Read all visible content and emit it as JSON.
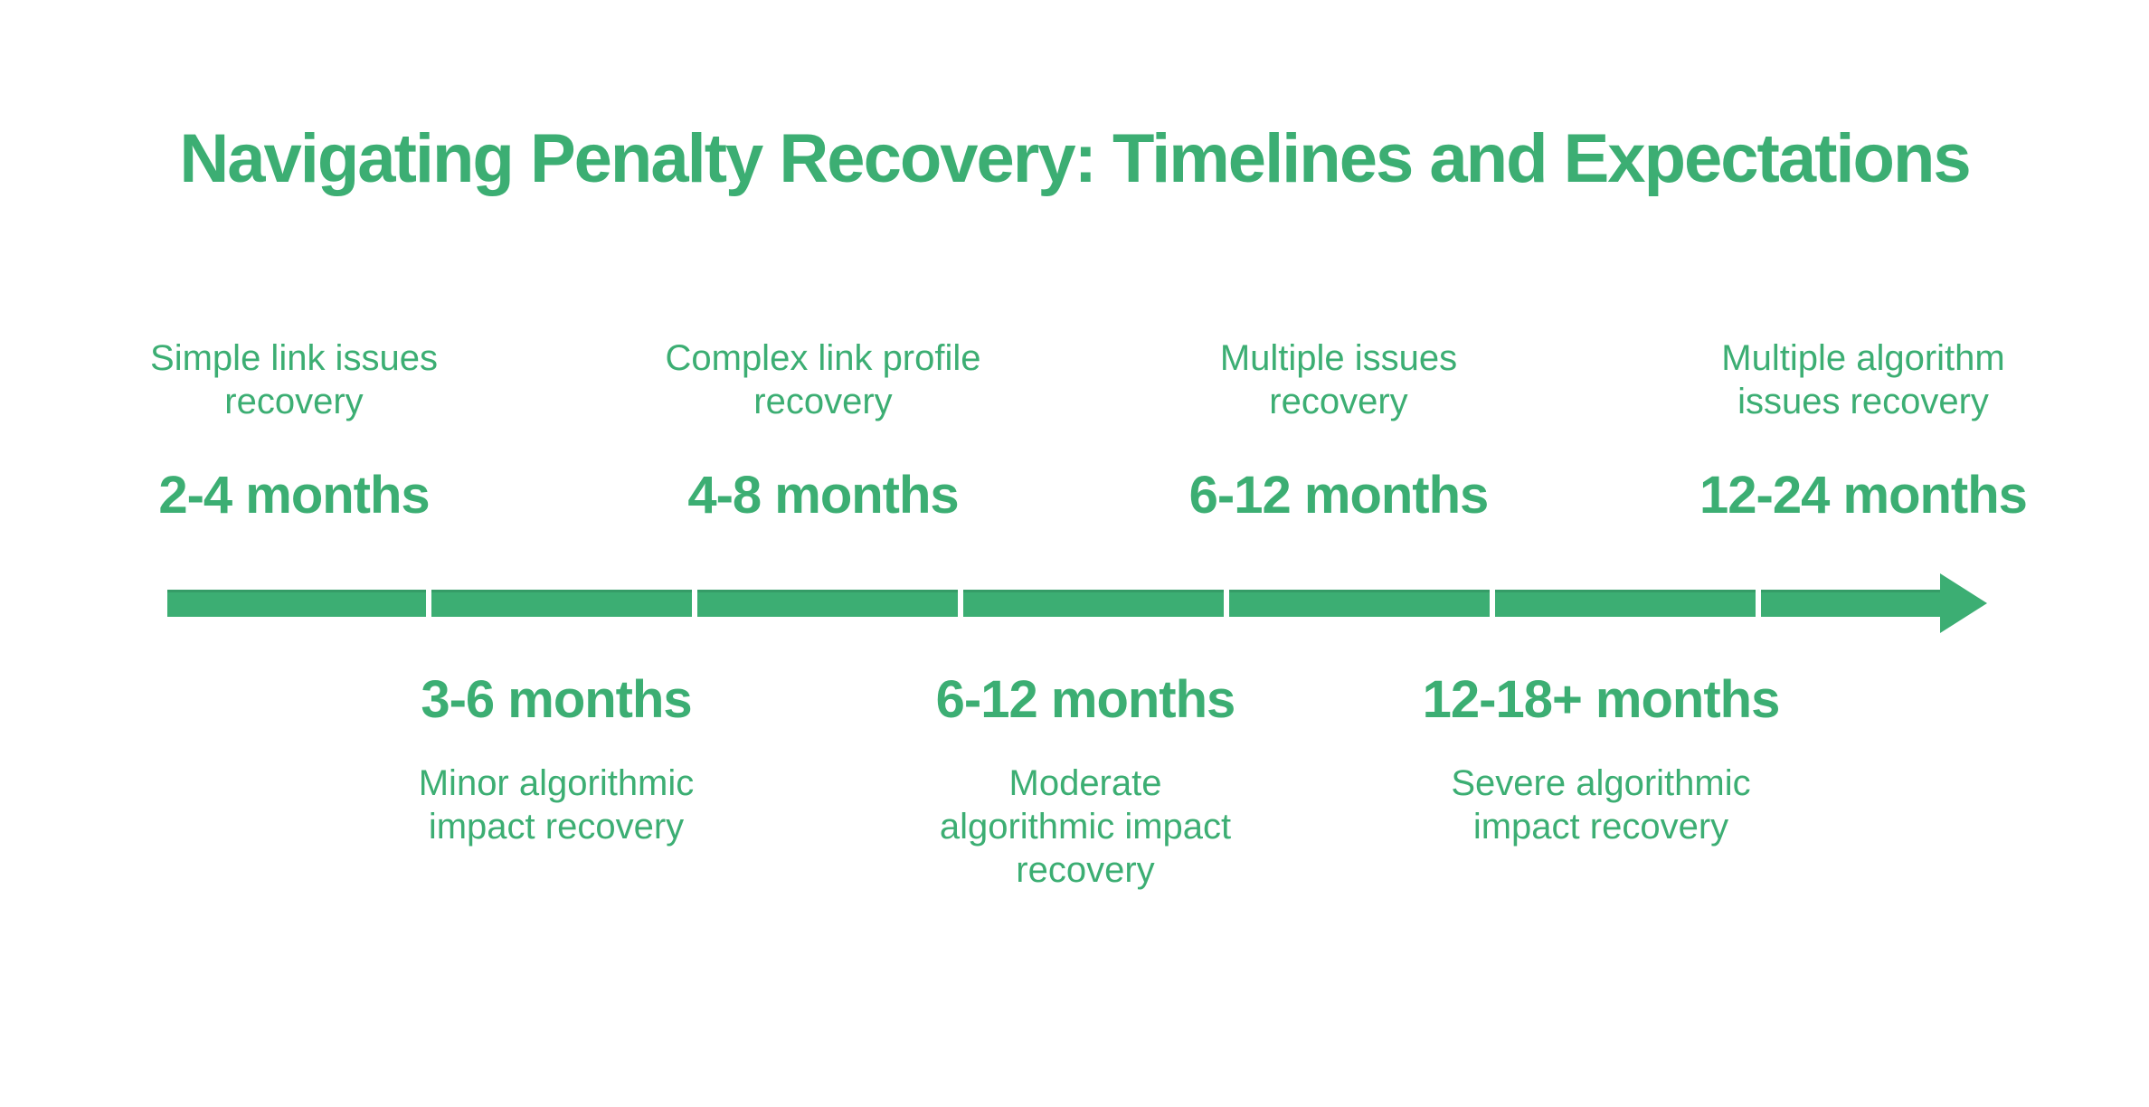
{
  "title": "Navigating Penalty Recovery: Timelines and Expectations",
  "colors": {
    "accent": "#3CAE73",
    "background": "#FFFFFF"
  },
  "timeline": {
    "segment_count": 7,
    "direction": "left-to-right"
  },
  "top_milestones": [
    {
      "label": "Simple link issues\nrecovery",
      "duration": "2-4 months"
    },
    {
      "label": "Complex link profile\nrecovery",
      "duration": "4-8 months"
    },
    {
      "label": "Multiple issues\nrecovery",
      "duration": "6-12 months"
    },
    {
      "label": "Multiple algorithm\nissues recovery",
      "duration": "12-24 months"
    }
  ],
  "bottom_milestones": [
    {
      "duration": "3-6 months",
      "label": "Minor algorithmic\nimpact recovery"
    },
    {
      "duration": "6-12 months",
      "label": "Moderate\nalgorithmic impact\nrecovery"
    },
    {
      "duration": "12-18+ months",
      "label": "Severe algorithmic\nimpact recovery"
    }
  ]
}
